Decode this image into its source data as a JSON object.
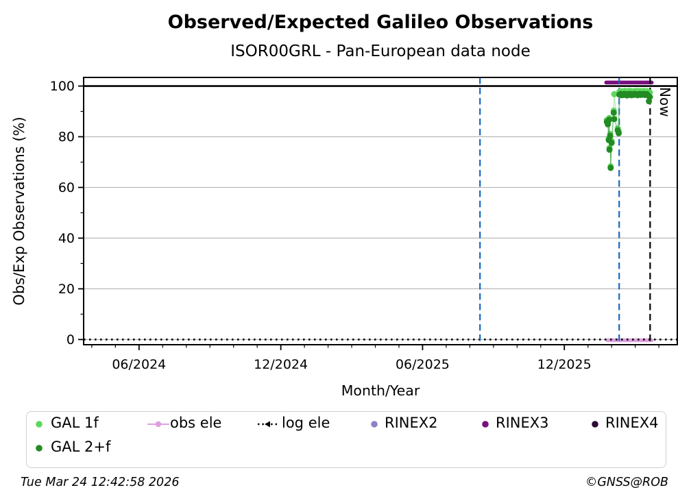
{
  "page": {
    "title": "Observed/Expected Galileo Observations",
    "subtitle": "ISOR00GRL - Pan-European data node"
  },
  "footer": {
    "timestamp": "Tue Mar 24 12:42:58 2026",
    "copyright": "©GNSS@ROB"
  },
  "chart_data": {
    "type": "line",
    "title": "Observed/Expected Galileo Observations",
    "subtitle": "ISOR00GRL - Pan-European data node",
    "xlabel": "Month/Year",
    "ylabel": "Obs/Exp Observations (%)",
    "x_encoding": "months since 2024-01-01 (m=5 -> 06/2024)",
    "xlim": [
      2.655,
      27.78
    ],
    "ylim": [
      -2.05,
      103.4
    ],
    "xticks": [
      {
        "m": 5,
        "label": "06/2024"
      },
      {
        "m": 11,
        "label": "12/2024"
      },
      {
        "m": 17,
        "label": "06/2025"
      },
      {
        "m": 23,
        "label": "12/2025"
      }
    ],
    "x_minor_every_month": true,
    "yticks": [
      0,
      20,
      40,
      60,
      80,
      100
    ],
    "y_minor_step": 10,
    "grid": {
      "horizontal": true,
      "vertical": false,
      "color": "#b2b2b2"
    },
    "reference_lines": [
      {
        "name": "hundred-percent-line",
        "y": 100,
        "style": "solid",
        "color": "#000000",
        "width": 2.6
      },
      {
        "name": "log-ele-zero-line",
        "y": 0,
        "style": "dotted",
        "color": "#000000",
        "width": 2.6
      }
    ],
    "event_lines": [
      {
        "name": "event-line-1",
        "m": 19.43,
        "style": "dashed",
        "color": "#1867c0",
        "label": ""
      },
      {
        "name": "event-line-2",
        "m": 25.32,
        "style": "dashed",
        "color": "#1867c0",
        "label": ""
      },
      {
        "name": "now-line",
        "m": 26.63,
        "style": "dashed",
        "color": "#000000",
        "label": "Now"
      }
    ],
    "now_label": "Now",
    "series": [
      {
        "name": "obs ele",
        "color": "#DDA0DD",
        "line_width": 5.5,
        "marker": "none",
        "points": [
          [
            24.83,
            -0.3
          ],
          [
            26.7,
            -0.3
          ]
        ]
      },
      {
        "name": "RINEX3",
        "color": "#7A0F7F",
        "line_width": 5.5,
        "marker": "none",
        "points": [
          [
            24.77,
            101.4
          ],
          [
            26.7,
            101.4
          ]
        ]
      },
      {
        "name": "GAL 1f",
        "color": "#5FD75F",
        "marker_r": 4.5,
        "line_width": 1.1,
        "points": [
          [
            24.8,
            86.6
          ],
          [
            24.84,
            85.6
          ],
          [
            24.88,
            79.4
          ],
          [
            24.9,
            87.4
          ],
          [
            24.91,
            75.6
          ],
          [
            24.94,
            81.1
          ],
          [
            24.96,
            68.3
          ],
          [
            25.0,
            78.3
          ],
          [
            25.09,
            90.3
          ],
          [
            25.11,
            96.8
          ],
          [
            25.26,
            83.3
          ],
          [
            25.3,
            82.1
          ],
          [
            25.33,
            97.8
          ],
          [
            25.38,
            98.0
          ],
          [
            25.42,
            97.6
          ],
          [
            25.47,
            97.9
          ],
          [
            25.51,
            97.7
          ],
          [
            25.56,
            98.1
          ],
          [
            25.6,
            97.8
          ],
          [
            25.65,
            97.5
          ],
          [
            25.69,
            98.0
          ],
          [
            25.74,
            97.7
          ],
          [
            25.78,
            98.1
          ],
          [
            25.83,
            97.6
          ],
          [
            25.87,
            97.9
          ],
          [
            25.92,
            97.7
          ],
          [
            25.96,
            98.0
          ],
          [
            26.01,
            97.8
          ],
          [
            26.05,
            98.1
          ],
          [
            26.1,
            97.6
          ],
          [
            26.14,
            97.9
          ],
          [
            26.19,
            98.1
          ],
          [
            26.23,
            97.7
          ],
          [
            26.28,
            98.0
          ],
          [
            26.32,
            97.8
          ],
          [
            26.37,
            98.1
          ],
          [
            26.41,
            97.7
          ],
          [
            26.45,
            97.9
          ],
          [
            26.5,
            98.0
          ],
          [
            26.54,
            97.6
          ],
          [
            26.58,
            97.3
          ],
          [
            26.62,
            97.5
          ]
        ]
      },
      {
        "name": "GAL 2+f",
        "color": "#228B22",
        "marker_r": 4.5,
        "line_width": 1.1,
        "points": [
          [
            24.8,
            85.9
          ],
          [
            24.84,
            84.9
          ],
          [
            24.88,
            78.7
          ],
          [
            24.9,
            86.7
          ],
          [
            24.91,
            74.9
          ],
          [
            24.94,
            80.3
          ],
          [
            24.96,
            67.7
          ],
          [
            25.0,
            77.6
          ],
          [
            25.09,
            89.5
          ],
          [
            25.11,
            87.0
          ],
          [
            25.26,
            82.5
          ],
          [
            25.3,
            81.4
          ],
          [
            25.33,
            96.6
          ],
          [
            25.38,
            96.9
          ],
          [
            25.42,
            96.4
          ],
          [
            25.47,
            96.8
          ],
          [
            25.51,
            96.5
          ],
          [
            25.56,
            96.9
          ],
          [
            25.6,
            96.6
          ],
          [
            25.65,
            96.3
          ],
          [
            25.69,
            96.8
          ],
          [
            25.74,
            96.6
          ],
          [
            25.78,
            96.9
          ],
          [
            25.83,
            96.4
          ],
          [
            25.87,
            96.7
          ],
          [
            25.92,
            96.5
          ],
          [
            25.96,
            96.9
          ],
          [
            26.01,
            96.6
          ],
          [
            26.05,
            96.8
          ],
          [
            26.1,
            96.4
          ],
          [
            26.14,
            96.7
          ],
          [
            26.19,
            96.9
          ],
          [
            26.23,
            96.5
          ],
          [
            26.28,
            96.8
          ],
          [
            26.32,
            96.6
          ],
          [
            26.37,
            96.9
          ],
          [
            26.41,
            96.5
          ],
          [
            26.45,
            96.7
          ],
          [
            26.5,
            96.8
          ],
          [
            26.54,
            96.3
          ],
          [
            26.58,
            94.0
          ],
          [
            26.62,
            95.7
          ]
        ]
      },
      {
        "name": "log ele",
        "color": "#000000",
        "marker": "none",
        "points": [],
        "note": "rendered as dotted reference line at 0%"
      },
      {
        "name": "RINEX2",
        "color": "#8E82C6",
        "points": []
      },
      {
        "name": "RINEX4",
        "color": "#2A0B33",
        "points": []
      }
    ],
    "legend": [
      {
        "label": "GAL 1f",
        "marker": "dot",
        "color": "#5FD75F"
      },
      {
        "label": "GAL 2+f",
        "marker": "dot",
        "color": "#228B22"
      },
      {
        "label": "obs ele",
        "marker": "line-dot",
        "color": "#DDA0DD"
      },
      {
        "label": "log ele",
        "marker": "dotted-line",
        "color": "#000000"
      },
      {
        "label": "RINEX2",
        "marker": "dot",
        "color": "#8E82C6"
      },
      {
        "label": "RINEX3",
        "marker": "dot",
        "color": "#7A0F7F"
      },
      {
        "label": "RINEX4",
        "marker": "dot",
        "color": "#2A0B33"
      }
    ],
    "legend_position": "bottom",
    "axis_color": "#000000"
  }
}
